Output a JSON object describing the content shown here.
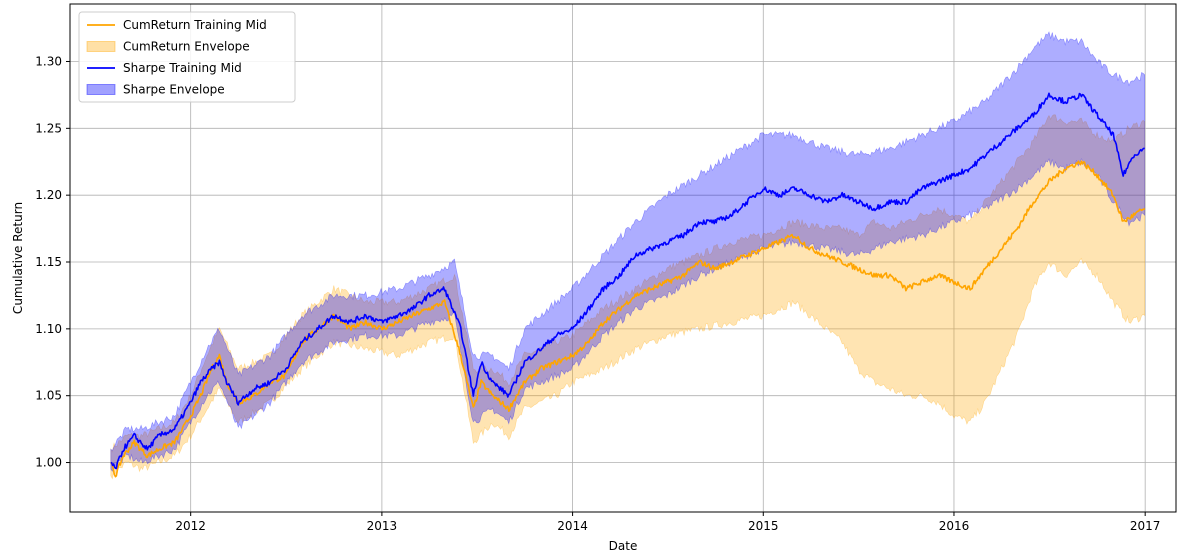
{
  "chart_data": {
    "type": "line",
    "title": "",
    "xlabel": "Date",
    "ylabel": "Cumulative Return",
    "xlim": [
      "2011-05-15",
      "2017-03-01"
    ],
    "ylim": [
      0.963,
      1.343
    ],
    "x_ticks": [
      "2012",
      "2013",
      "2014",
      "2015",
      "2016",
      "2017"
    ],
    "y_ticks": [
      "1.00",
      "1.05",
      "1.10",
      "1.15",
      "1.20",
      "1.25",
      "1.30"
    ],
    "grid": true,
    "legend_position": "top-left",
    "colors": {
      "cum_line": "#ffa500",
      "cum_fill": "#ffa500",
      "sharpe_line": "#0000ff",
      "sharpe_fill": "#0000ff"
    },
    "series": [
      {
        "name": "CumReturn Training Mid",
        "kind": "line",
        "points": [
          [
            "2011-08-01",
            1.0
          ],
          [
            "2011-08-10",
            0.99
          ],
          [
            "2011-08-25",
            1.005
          ],
          [
            "2011-09-15",
            1.015
          ],
          [
            "2011-10-10",
            1.005
          ],
          [
            "2011-11-01",
            1.01
          ],
          [
            "2011-12-01",
            1.015
          ],
          [
            "2012-01-01",
            1.035
          ],
          [
            "2012-01-20",
            1.05
          ],
          [
            "2012-02-10",
            1.07
          ],
          [
            "2012-02-25",
            1.08
          ],
          [
            "2012-03-10",
            1.06
          ],
          [
            "2012-04-01",
            1.045
          ],
          [
            "2012-05-01",
            1.05
          ],
          [
            "2012-06-01",
            1.06
          ],
          [
            "2012-07-01",
            1.065
          ],
          [
            "2012-08-01",
            1.09
          ],
          [
            "2012-09-01",
            1.1
          ],
          [
            "2012-10-01",
            1.11
          ],
          [
            "2012-11-01",
            1.1
          ],
          [
            "2012-12-01",
            1.105
          ],
          [
            "2013-01-01",
            1.1
          ],
          [
            "2013-02-01",
            1.105
          ],
          [
            "2013-03-01",
            1.11
          ],
          [
            "2013-04-01",
            1.115
          ],
          [
            "2013-05-01",
            1.12
          ],
          [
            "2013-06-01",
            1.08
          ],
          [
            "2013-06-25",
            1.04
          ],
          [
            "2013-07-10",
            1.06
          ],
          [
            "2013-08-01",
            1.05
          ],
          [
            "2013-09-01",
            1.04
          ],
          [
            "2013-10-01",
            1.06
          ],
          [
            "2013-11-01",
            1.07
          ],
          [
            "2013-12-01",
            1.075
          ],
          [
            "2014-01-01",
            1.08
          ],
          [
            "2014-02-01",
            1.09
          ],
          [
            "2014-03-01",
            1.105
          ],
          [
            "2014-04-01",
            1.115
          ],
          [
            "2014-05-01",
            1.125
          ],
          [
            "2014-06-01",
            1.13
          ],
          [
            "2014-07-01",
            1.135
          ],
          [
            "2014-08-01",
            1.14
          ],
          [
            "2014-09-01",
            1.15
          ],
          [
            "2014-10-01",
            1.145
          ],
          [
            "2014-11-01",
            1.15
          ],
          [
            "2014-12-01",
            1.155
          ],
          [
            "2015-01-01",
            1.16
          ],
          [
            "2015-02-01",
            1.165
          ],
          [
            "2015-03-01",
            1.17
          ],
          [
            "2015-04-01",
            1.16
          ],
          [
            "2015-05-01",
            1.155
          ],
          [
            "2015-06-01",
            1.15
          ],
          [
            "2015-07-01",
            1.145
          ],
          [
            "2015-08-01",
            1.14
          ],
          [
            "2015-09-01",
            1.14
          ],
          [
            "2015-10-01",
            1.13
          ],
          [
            "2015-11-01",
            1.135
          ],
          [
            "2015-12-01",
            1.14
          ],
          [
            "2016-01-01",
            1.135
          ],
          [
            "2016-02-01",
            1.13
          ],
          [
            "2016-03-01",
            1.145
          ],
          [
            "2016-04-01",
            1.16
          ],
          [
            "2016-05-01",
            1.175
          ],
          [
            "2016-06-01",
            1.195
          ],
          [
            "2016-07-01",
            1.21
          ],
          [
            "2016-08-01",
            1.22
          ],
          [
            "2016-09-01",
            1.225
          ],
          [
            "2016-10-01",
            1.215
          ],
          [
            "2016-11-01",
            1.2
          ],
          [
            "2016-11-20",
            1.18
          ],
          [
            "2016-12-10",
            1.185
          ],
          [
            "2016-12-31",
            1.19
          ]
        ]
      },
      {
        "name": "CumReturn Envelope",
        "kind": "band",
        "points": [
          [
            "2011-08-01",
            0.99,
            1.01
          ],
          [
            "2011-09-01",
            1.0,
            1.02
          ],
          [
            "2011-10-01",
            0.995,
            1.02
          ],
          [
            "2011-11-01",
            1.0,
            1.025
          ],
          [
            "2011-12-01",
            1.005,
            1.03
          ],
          [
            "2012-01-01",
            1.02,
            1.05
          ],
          [
            "2012-02-01",
            1.04,
            1.08
          ],
          [
            "2012-02-25",
            1.055,
            1.1
          ],
          [
            "2012-04-01",
            1.03,
            1.07
          ],
          [
            "2012-06-01",
            1.045,
            1.08
          ],
          [
            "2012-08-01",
            1.07,
            1.11
          ],
          [
            "2012-10-01",
            1.09,
            1.13
          ],
          [
            "2012-12-01",
            1.085,
            1.12
          ],
          [
            "2013-02-01",
            1.08,
            1.12
          ],
          [
            "2013-04-01",
            1.09,
            1.13
          ],
          [
            "2013-05-20",
            1.095,
            1.14
          ],
          [
            "2013-06-25",
            1.015,
            1.07
          ],
          [
            "2013-08-01",
            1.03,
            1.07
          ],
          [
            "2013-09-01",
            1.02,
            1.06
          ],
          [
            "2013-10-01",
            1.04,
            1.08
          ],
          [
            "2013-12-01",
            1.05,
            1.09
          ],
          [
            "2014-01-01",
            1.06,
            1.095
          ],
          [
            "2014-03-01",
            1.07,
            1.115
          ],
          [
            "2014-05-01",
            1.085,
            1.13
          ],
          [
            "2014-07-01",
            1.095,
            1.145
          ],
          [
            "2014-09-01",
            1.1,
            1.155
          ],
          [
            "2014-11-01",
            1.105,
            1.165
          ],
          [
            "2015-01-01",
            1.11,
            1.17
          ],
          [
            "2015-03-01",
            1.12,
            1.18
          ],
          [
            "2015-05-01",
            1.1,
            1.175
          ],
          [
            "2015-06-01",
            1.09,
            1.175
          ],
          [
            "2015-07-01",
            1.07,
            1.17
          ],
          [
            "2015-08-01",
            1.06,
            1.18
          ],
          [
            "2015-09-01",
            1.055,
            1.175
          ],
          [
            "2015-10-01",
            1.05,
            1.18
          ],
          [
            "2015-11-01",
            1.05,
            1.185
          ],
          [
            "2015-12-01",
            1.045,
            1.19
          ],
          [
            "2016-01-01",
            1.035,
            1.185
          ],
          [
            "2016-02-01",
            1.03,
            1.18
          ],
          [
            "2016-03-01",
            1.045,
            1.195
          ],
          [
            "2016-04-01",
            1.07,
            1.21
          ],
          [
            "2016-05-01",
            1.095,
            1.225
          ],
          [
            "2016-06-01",
            1.13,
            1.24
          ],
          [
            "2016-07-01",
            1.15,
            1.26
          ],
          [
            "2016-08-01",
            1.14,
            1.255
          ],
          [
            "2016-09-01",
            1.15,
            1.255
          ],
          [
            "2016-10-01",
            1.14,
            1.245
          ],
          [
            "2016-11-01",
            1.12,
            1.24
          ],
          [
            "2016-12-01",
            1.105,
            1.25
          ],
          [
            "2016-12-31",
            1.11,
            1.255
          ]
        ]
      },
      {
        "name": "Sharpe Training Mid",
        "kind": "line",
        "points": [
          [
            "2011-08-01",
            1.0
          ],
          [
            "2011-08-10",
            0.995
          ],
          [
            "2011-08-25",
            1.01
          ],
          [
            "2011-09-15",
            1.02
          ],
          [
            "2011-10-10",
            1.01
          ],
          [
            "2011-11-01",
            1.02
          ],
          [
            "2011-12-01",
            1.025
          ],
          [
            "2012-01-01",
            1.045
          ],
          [
            "2012-01-20",
            1.06
          ],
          [
            "2012-02-10",
            1.07
          ],
          [
            "2012-02-25",
            1.075
          ],
          [
            "2012-03-10",
            1.06
          ],
          [
            "2012-04-01",
            1.045
          ],
          [
            "2012-05-01",
            1.055
          ],
          [
            "2012-06-01",
            1.06
          ],
          [
            "2012-07-01",
            1.07
          ],
          [
            "2012-08-01",
            1.09
          ],
          [
            "2012-09-01",
            1.1
          ],
          [
            "2012-10-01",
            1.11
          ],
          [
            "2012-11-01",
            1.105
          ],
          [
            "2012-12-01",
            1.11
          ],
          [
            "2013-01-01",
            1.105
          ],
          [
            "2013-02-01",
            1.11
          ],
          [
            "2013-03-01",
            1.115
          ],
          [
            "2013-04-01",
            1.125
          ],
          [
            "2013-05-01",
            1.13
          ],
          [
            "2013-06-01",
            1.1
          ],
          [
            "2013-06-25",
            1.05
          ],
          [
            "2013-07-10",
            1.075
          ],
          [
            "2013-08-01",
            1.06
          ],
          [
            "2013-09-01",
            1.05
          ],
          [
            "2013-10-01",
            1.075
          ],
          [
            "2013-11-01",
            1.085
          ],
          [
            "2013-12-01",
            1.095
          ],
          [
            "2014-01-01",
            1.1
          ],
          [
            "2014-02-01",
            1.115
          ],
          [
            "2014-03-01",
            1.13
          ],
          [
            "2014-04-01",
            1.14
          ],
          [
            "2014-05-01",
            1.155
          ],
          [
            "2014-06-01",
            1.16
          ],
          [
            "2014-07-01",
            1.165
          ],
          [
            "2014-08-01",
            1.17
          ],
          [
            "2014-09-01",
            1.18
          ],
          [
            "2014-10-01",
            1.18
          ],
          [
            "2014-11-01",
            1.185
          ],
          [
            "2014-12-01",
            1.195
          ],
          [
            "2015-01-01",
            1.205
          ],
          [
            "2015-02-01",
            1.2
          ],
          [
            "2015-03-01",
            1.205
          ],
          [
            "2015-04-01",
            1.2
          ],
          [
            "2015-05-01",
            1.195
          ],
          [
            "2015-06-01",
            1.2
          ],
          [
            "2015-07-01",
            1.195
          ],
          [
            "2015-08-01",
            1.19
          ],
          [
            "2015-09-01",
            1.195
          ],
          [
            "2015-10-01",
            1.195
          ],
          [
            "2015-11-01",
            1.205
          ],
          [
            "2015-12-01",
            1.21
          ],
          [
            "2016-01-01",
            1.215
          ],
          [
            "2016-02-01",
            1.22
          ],
          [
            "2016-03-01",
            1.23
          ],
          [
            "2016-04-01",
            1.24
          ],
          [
            "2016-05-01",
            1.25
          ],
          [
            "2016-06-01",
            1.26
          ],
          [
            "2016-07-01",
            1.275
          ],
          [
            "2016-08-01",
            1.27
          ],
          [
            "2016-09-01",
            1.275
          ],
          [
            "2016-10-01",
            1.26
          ],
          [
            "2016-11-01",
            1.245
          ],
          [
            "2016-11-20",
            1.215
          ],
          [
            "2016-12-10",
            1.23
          ],
          [
            "2016-12-31",
            1.235
          ]
        ]
      },
      {
        "name": "Sharpe Envelope",
        "kind": "band",
        "points": [
          [
            "2011-08-01",
            0.995,
            1.01
          ],
          [
            "2011-09-01",
            1.005,
            1.025
          ],
          [
            "2011-10-01",
            1.0,
            1.025
          ],
          [
            "2011-11-01",
            1.005,
            1.03
          ],
          [
            "2011-12-01",
            1.01,
            1.035
          ],
          [
            "2012-01-01",
            1.03,
            1.06
          ],
          [
            "2012-02-01",
            1.05,
            1.085
          ],
          [
            "2012-02-25",
            1.06,
            1.1
          ],
          [
            "2012-04-01",
            1.025,
            1.065
          ],
          [
            "2012-06-01",
            1.045,
            1.08
          ],
          [
            "2012-08-01",
            1.075,
            1.11
          ],
          [
            "2012-10-01",
            1.09,
            1.125
          ],
          [
            "2012-12-01",
            1.095,
            1.125
          ],
          [
            "2013-02-01",
            1.095,
            1.13
          ],
          [
            "2013-04-01",
            1.105,
            1.14
          ],
          [
            "2013-05-20",
            1.11,
            1.15
          ],
          [
            "2013-06-25",
            1.03,
            1.08
          ],
          [
            "2013-08-01",
            1.04,
            1.08
          ],
          [
            "2013-09-01",
            1.03,
            1.07
          ],
          [
            "2013-10-01",
            1.055,
            1.1
          ],
          [
            "2013-12-01",
            1.065,
            1.12
          ],
          [
            "2014-01-01",
            1.07,
            1.13
          ],
          [
            "2014-03-01",
            1.095,
            1.155
          ],
          [
            "2014-05-01",
            1.115,
            1.18
          ],
          [
            "2014-07-01",
            1.125,
            1.2
          ],
          [
            "2014-09-01",
            1.14,
            1.215
          ],
          [
            "2014-11-01",
            1.15,
            1.23
          ],
          [
            "2015-01-01",
            1.16,
            1.245
          ],
          [
            "2015-03-01",
            1.165,
            1.245
          ],
          [
            "2015-05-01",
            1.16,
            1.235
          ],
          [
            "2015-07-01",
            1.155,
            1.23
          ],
          [
            "2015-09-01",
            1.165,
            1.235
          ],
          [
            "2015-11-01",
            1.17,
            1.245
          ],
          [
            "2016-01-01",
            1.18,
            1.255
          ],
          [
            "2016-03-01",
            1.19,
            1.27
          ],
          [
            "2016-05-01",
            1.205,
            1.295
          ],
          [
            "2016-06-01",
            1.215,
            1.31
          ],
          [
            "2016-07-01",
            1.225,
            1.32
          ],
          [
            "2016-08-01",
            1.22,
            1.315
          ],
          [
            "2016-09-01",
            1.225,
            1.315
          ],
          [
            "2016-10-01",
            1.215,
            1.3
          ],
          [
            "2016-11-01",
            1.195,
            1.29
          ],
          [
            "2016-12-01",
            1.18,
            1.285
          ],
          [
            "2016-12-31",
            1.185,
            1.29
          ]
        ]
      }
    ]
  }
}
